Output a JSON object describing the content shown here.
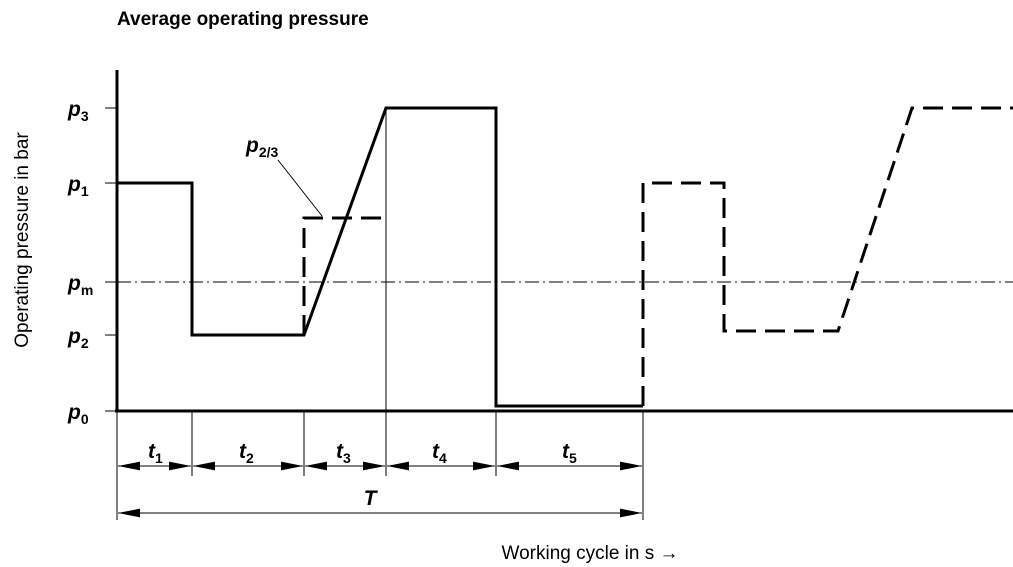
{
  "header": {
    "title": "Average operating pressure"
  },
  "axes": {
    "y_label": "Operating pressure in bar",
    "x_label": "Working cycle in s →"
  },
  "pressure_levels": [
    {
      "base": "p",
      "sub": "3"
    },
    {
      "base": "p",
      "sub": "1"
    },
    {
      "base": "p",
      "sub": "m"
    },
    {
      "base": "p",
      "sub": "2"
    },
    {
      "base": "p",
      "sub": "0"
    }
  ],
  "annotation": {
    "base": "p",
    "sub": "2/3"
  },
  "intervals": [
    {
      "base": "t",
      "sub": "1"
    },
    {
      "base": "t",
      "sub": "2"
    },
    {
      "base": "t",
      "sub": "3"
    },
    {
      "base": "t",
      "sub": "4"
    },
    {
      "base": "t",
      "sub": "5"
    }
  ],
  "period": "T"
}
